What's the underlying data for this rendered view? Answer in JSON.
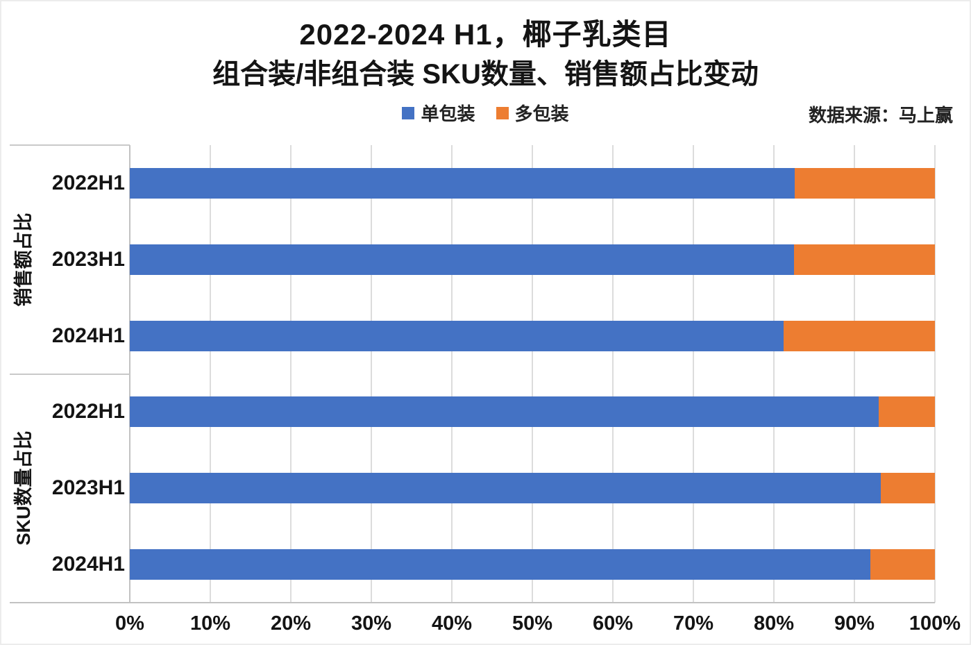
{
  "title": {
    "line1": "2022-2024 H1，椰子乳类目",
    "line2": "组合装/非组合装 SKU数量、销售额占比变动"
  },
  "legend": [
    {
      "label": "单包装",
      "color": "#4472C4"
    },
    {
      "label": "多包装",
      "color": "#ED7D31"
    }
  ],
  "source": "数据来源：马上赢",
  "colors": {
    "grid": "#dcdcdc",
    "axis": "#c2c2c2"
  },
  "chart_data": {
    "type": "bar",
    "orientation": "horizontal",
    "stacked": true,
    "unit": "%",
    "title": "2022-2024 H1，椰子乳类目 组合装/非组合装 SKU数量、销售额占比变动",
    "legend_position": "top",
    "grid": true,
    "colors": {
      "单包装": "#4472C4",
      "多包装": "#ED7D31"
    },
    "x_axis": {
      "min": 0,
      "max": 100,
      "ticks": [
        "0%",
        "10%",
        "20%",
        "30%",
        "40%",
        "50%",
        "60%",
        "70%",
        "80%",
        "90%",
        "100%"
      ]
    },
    "groups": [
      {
        "label": "销售额占比",
        "categories": [
          "2022H1",
          "2023H1",
          "2024H1"
        ],
        "series": [
          {
            "name": "单包装",
            "values": [
              82.6,
              82.5,
              81.2
            ]
          },
          {
            "name": "多包装",
            "values": [
              17.4,
              17.5,
              18.8
            ]
          }
        ]
      },
      {
        "label": "SKU数量占比",
        "categories": [
          "2022H1",
          "2023H1",
          "2024H1"
        ],
        "series": [
          {
            "name": "单包装",
            "values": [
              93.0,
              93.3,
              92.0
            ]
          },
          {
            "name": "多包装",
            "values": [
              7.0,
              6.7,
              8.0
            ]
          }
        ]
      }
    ]
  }
}
